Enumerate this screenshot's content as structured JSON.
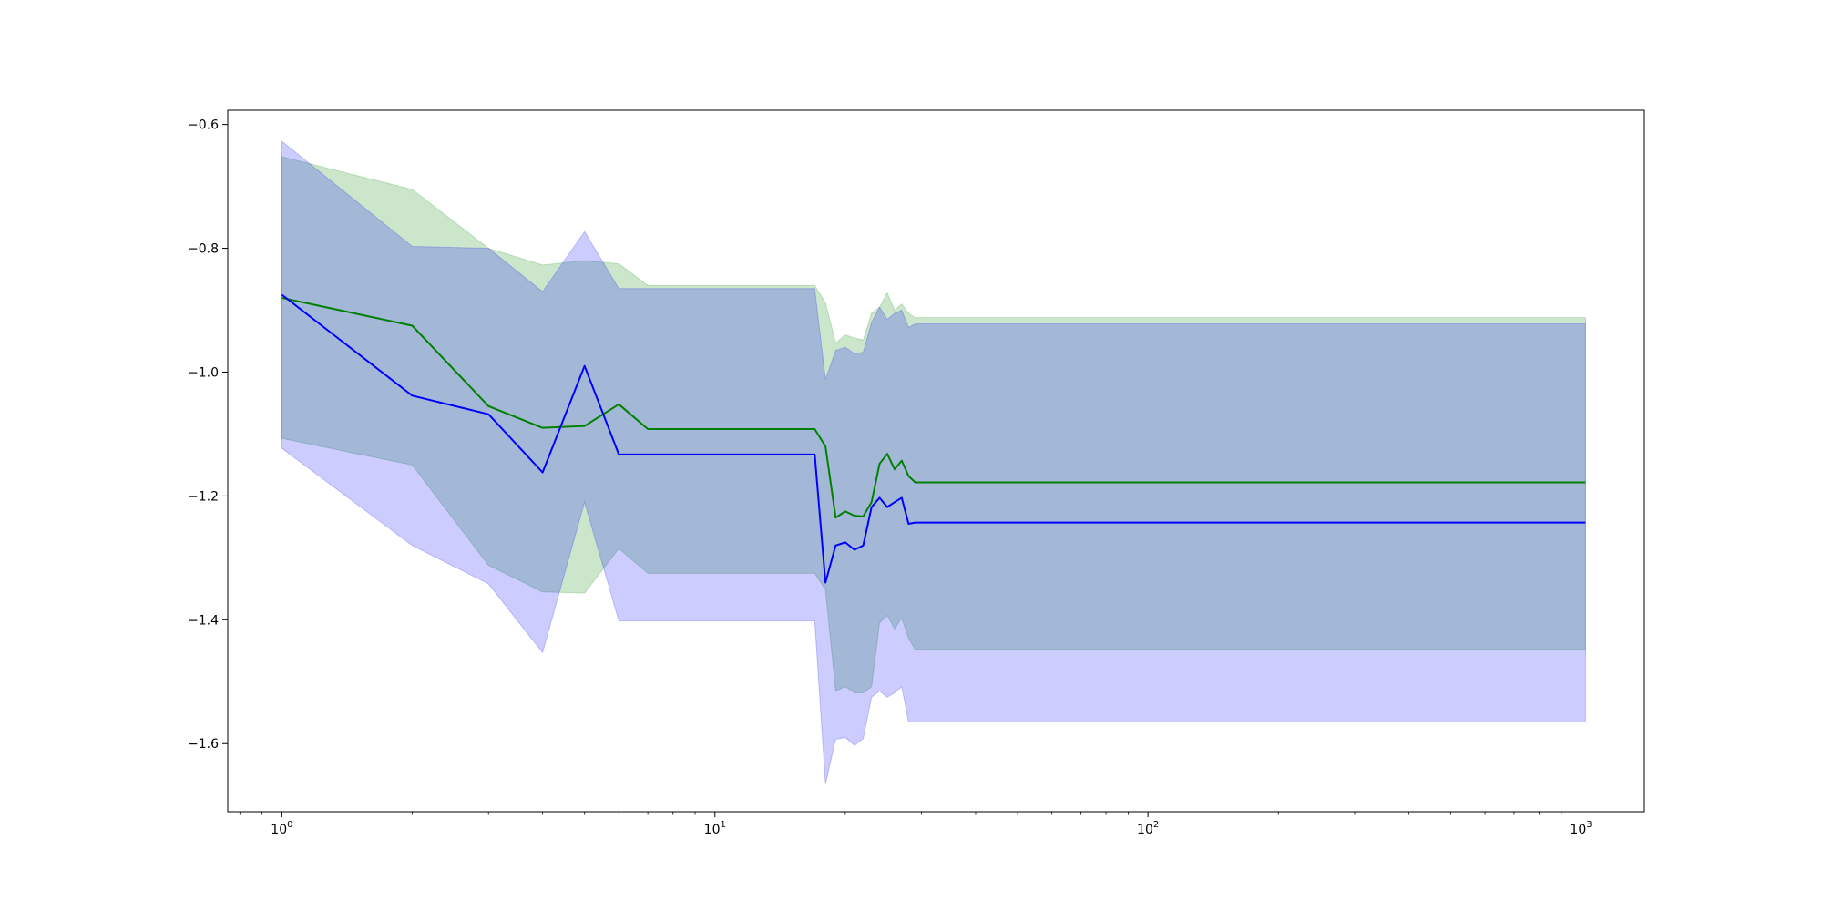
{
  "chart_data": {
    "type": "line",
    "title": "",
    "xlabel": "",
    "ylabel": "",
    "xscale": "log",
    "xlim": [
      0.75,
      1400
    ],
    "ylim": [
      -1.71,
      -0.577
    ],
    "grid": false,
    "legend": "none",
    "x_ticks": [
      {
        "value": 1,
        "base": "10",
        "exp": "0"
      },
      {
        "value": 10,
        "base": "10",
        "exp": "1"
      },
      {
        "value": 100,
        "base": "10",
        "exp": "2"
      },
      {
        "value": 1000,
        "base": "10",
        "exp": "3"
      }
    ],
    "y_ticks": [
      {
        "value": -0.6,
        "label": "−0.6"
      },
      {
        "value": -0.8,
        "label": "−0.8"
      },
      {
        "value": -1.0,
        "label": "−1.0"
      },
      {
        "value": -1.2,
        "label": "−1.2"
      },
      {
        "value": -1.4,
        "label": "−1.4"
      },
      {
        "value": -1.6,
        "label": "−1.6"
      }
    ],
    "x": [
      1,
      2,
      3,
      4,
      5,
      6,
      7,
      17,
      18,
      19,
      20,
      21,
      22,
      23,
      24,
      25,
      26,
      27,
      28,
      29,
      1024
    ],
    "series": [
      {
        "color": "#008000",
        "band_color": "#008000",
        "band_opacity": 0.2,
        "values": [
          -0.88,
          -0.925,
          -1.055,
          -1.09,
          -1.087,
          -1.052,
          -1.092,
          -1.092,
          -1.12,
          -1.235,
          -1.225,
          -1.232,
          -1.233,
          -1.21,
          -1.148,
          -1.132,
          -1.157,
          -1.143,
          -1.168,
          -1.178,
          -1.178
        ],
        "upper": [
          -0.652,
          -0.705,
          -0.8,
          -0.827,
          -0.82,
          -0.825,
          -0.86,
          -0.86,
          -0.888,
          -0.953,
          -0.94,
          -0.945,
          -0.948,
          -0.905,
          -0.895,
          -0.872,
          -0.9,
          -0.89,
          -0.905,
          -0.912,
          -0.912
        ],
        "lower": [
          -1.107,
          -1.15,
          -1.312,
          -1.355,
          -1.357,
          -1.285,
          -1.325,
          -1.325,
          -1.352,
          -1.515,
          -1.508,
          -1.518,
          -1.518,
          -1.508,
          -1.405,
          -1.393,
          -1.415,
          -1.397,
          -1.43,
          -1.448,
          -1.448
        ]
      },
      {
        "color": "#0000ff",
        "band_color": "#0000ff",
        "band_opacity": 0.2,
        "values": [
          -0.875,
          -1.038,
          -1.068,
          -1.162,
          -0.99,
          -1.133,
          -1.133,
          -1.133,
          -1.34,
          -1.28,
          -1.275,
          -1.287,
          -1.28,
          -1.218,
          -1.203,
          -1.218,
          -1.21,
          -1.203,
          -1.245,
          -1.243,
          -1.243
        ],
        "upper": [
          -0.627,
          -0.797,
          -0.8,
          -0.87,
          -0.773,
          -0.865,
          -0.865,
          -0.865,
          -1.012,
          -0.965,
          -0.96,
          -0.97,
          -0.968,
          -0.92,
          -0.895,
          -0.915,
          -0.905,
          -0.9,
          -0.928,
          -0.922,
          -0.922
        ],
        "lower": [
          -1.123,
          -1.28,
          -1.342,
          -1.453,
          -1.21,
          -1.402,
          -1.402,
          -1.402,
          -1.665,
          -1.593,
          -1.59,
          -1.603,
          -1.592,
          -1.525,
          -1.515,
          -1.525,
          -1.518,
          -1.508,
          -1.565,
          -1.565,
          -1.565
        ]
      }
    ]
  }
}
